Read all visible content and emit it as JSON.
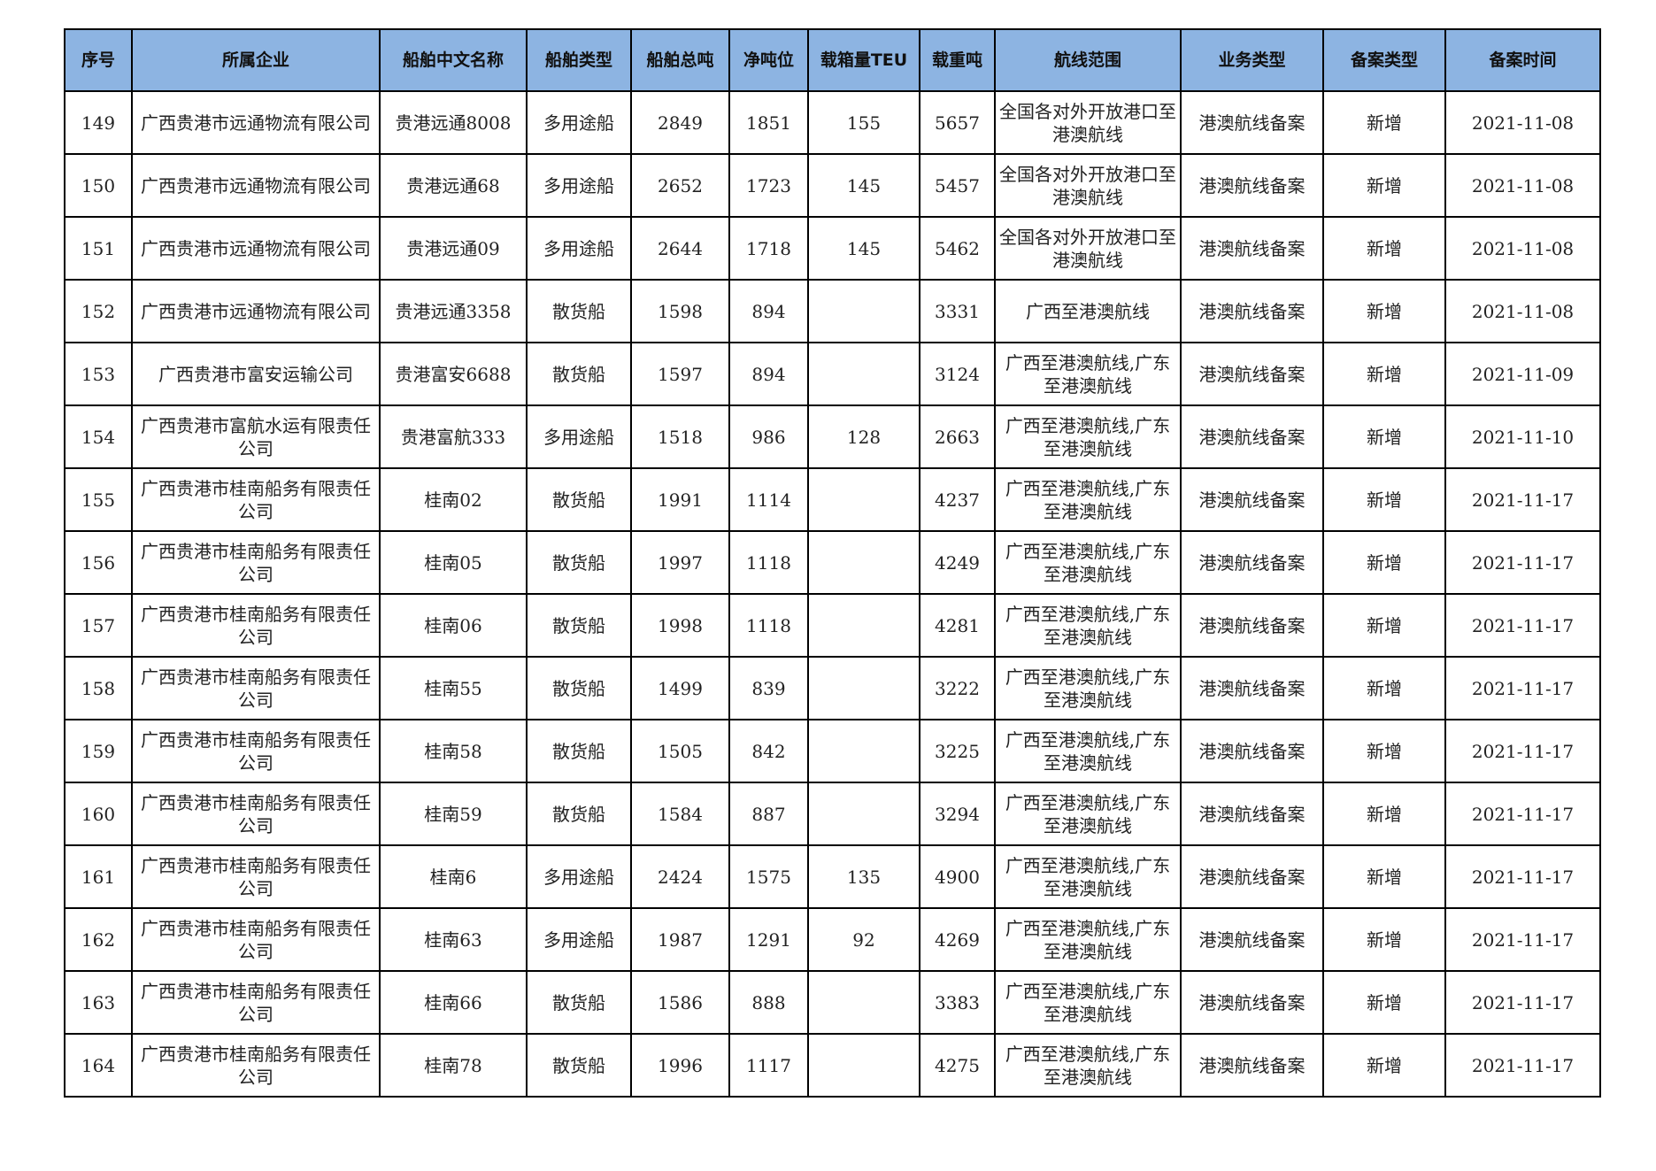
{
  "colors": {
    "header_bg": "#8db4e2",
    "border": "#000000"
  },
  "table": {
    "headers": [
      "序号",
      "所属企业",
      "船舶中文名称",
      "船舶类型",
      "船舶总吨",
      "净吨位",
      "载箱量TEU",
      "载重吨",
      "航线范围",
      "业务类型",
      "备案类型",
      "备案时间"
    ],
    "rows": [
      [
        "149",
        "广西贵港市远通物流有限公司",
        "贵港远通8008",
        "多用途船",
        "2849",
        "1851",
        "155",
        "5657",
        "全国各对外开放港口至港澳航线",
        "港澳航线备案",
        "新增",
        "2021-11-08"
      ],
      [
        "150",
        "广西贵港市远通物流有限公司",
        "贵港远通68",
        "多用途船",
        "2652",
        "1723",
        "145",
        "5457",
        "全国各对外开放港口至港澳航线",
        "港澳航线备案",
        "新增",
        "2021-11-08"
      ],
      [
        "151",
        "广西贵港市远通物流有限公司",
        "贵港远通09",
        "多用途船",
        "2644",
        "1718",
        "145",
        "5462",
        "全国各对外开放港口至港澳航线",
        "港澳航线备案",
        "新增",
        "2021-11-08"
      ],
      [
        "152",
        "广西贵港市远通物流有限公司",
        "贵港远通3358",
        "散货船",
        "1598",
        "894",
        "",
        "3331",
        "广西至港澳航线",
        "港澳航线备案",
        "新增",
        "2021-11-08"
      ],
      [
        "153",
        "广西贵港市富安运输公司",
        "贵港富安6688",
        "散货船",
        "1597",
        "894",
        "",
        "3124",
        "广西至港澳航线,广东至港澳航线",
        "港澳航线备案",
        "新增",
        "2021-11-09"
      ],
      [
        "154",
        "广西贵港市富航水运有限责任公司",
        "贵港富航333",
        "多用途船",
        "1518",
        "986",
        "128",
        "2663",
        "广西至港澳航线,广东至港澳航线",
        "港澳航线备案",
        "新增",
        "2021-11-10"
      ],
      [
        "155",
        "广西贵港市桂南船务有限责任公司",
        "桂南02",
        "散货船",
        "1991",
        "1114",
        "",
        "4237",
        "广西至港澳航线,广东至港澳航线",
        "港澳航线备案",
        "新增",
        "2021-11-17"
      ],
      [
        "156",
        "广西贵港市桂南船务有限责任公司",
        "桂南05",
        "散货船",
        "1997",
        "1118",
        "",
        "4249",
        "广西至港澳航线,广东至港澳航线",
        "港澳航线备案",
        "新增",
        "2021-11-17"
      ],
      [
        "157",
        "广西贵港市桂南船务有限责任公司",
        "桂南06",
        "散货船",
        "1998",
        "1118",
        "",
        "4281",
        "广西至港澳航线,广东至港澳航线",
        "港澳航线备案",
        "新增",
        "2021-11-17"
      ],
      [
        "158",
        "广西贵港市桂南船务有限责任公司",
        "桂南55",
        "散货船",
        "1499",
        "839",
        "",
        "3222",
        "广西至港澳航线,广东至港澳航线",
        "港澳航线备案",
        "新增",
        "2021-11-17"
      ],
      [
        "159",
        "广西贵港市桂南船务有限责任公司",
        "桂南58",
        "散货船",
        "1505",
        "842",
        "",
        "3225",
        "广西至港澳航线,广东至港澳航线",
        "港澳航线备案",
        "新增",
        "2021-11-17"
      ],
      [
        "160",
        "广西贵港市桂南船务有限责任公司",
        "桂南59",
        "散货船",
        "1584",
        "887",
        "",
        "3294",
        "广西至港澳航线,广东至港澳航线",
        "港澳航线备案",
        "新增",
        "2021-11-17"
      ],
      [
        "161",
        "广西贵港市桂南船务有限责任公司",
        "桂南6",
        "多用途船",
        "2424",
        "1575",
        "135",
        "4900",
        "广西至港澳航线,广东至港澳航线",
        "港澳航线备案",
        "新增",
        "2021-11-17"
      ],
      [
        "162",
        "广西贵港市桂南船务有限责任公司",
        "桂南63",
        "多用途船",
        "1987",
        "1291",
        "92",
        "4269",
        "广西至港澳航线,广东至港澳航线",
        "港澳航线备案",
        "新增",
        "2021-11-17"
      ],
      [
        "163",
        "广西贵港市桂南船务有限责任公司",
        "桂南66",
        "散货船",
        "1586",
        "888",
        "",
        "3383",
        "广西至港澳航线,广东至港澳航线",
        "港澳航线备案",
        "新增",
        "2021-11-17"
      ],
      [
        "164",
        "广西贵港市桂南船务有限责任公司",
        "桂南78",
        "散货船",
        "1996",
        "1117",
        "",
        "4275",
        "广西至港澳航线,广东至港澳航线",
        "港澳航线备案",
        "新增",
        "2021-11-17"
      ]
    ]
  }
}
